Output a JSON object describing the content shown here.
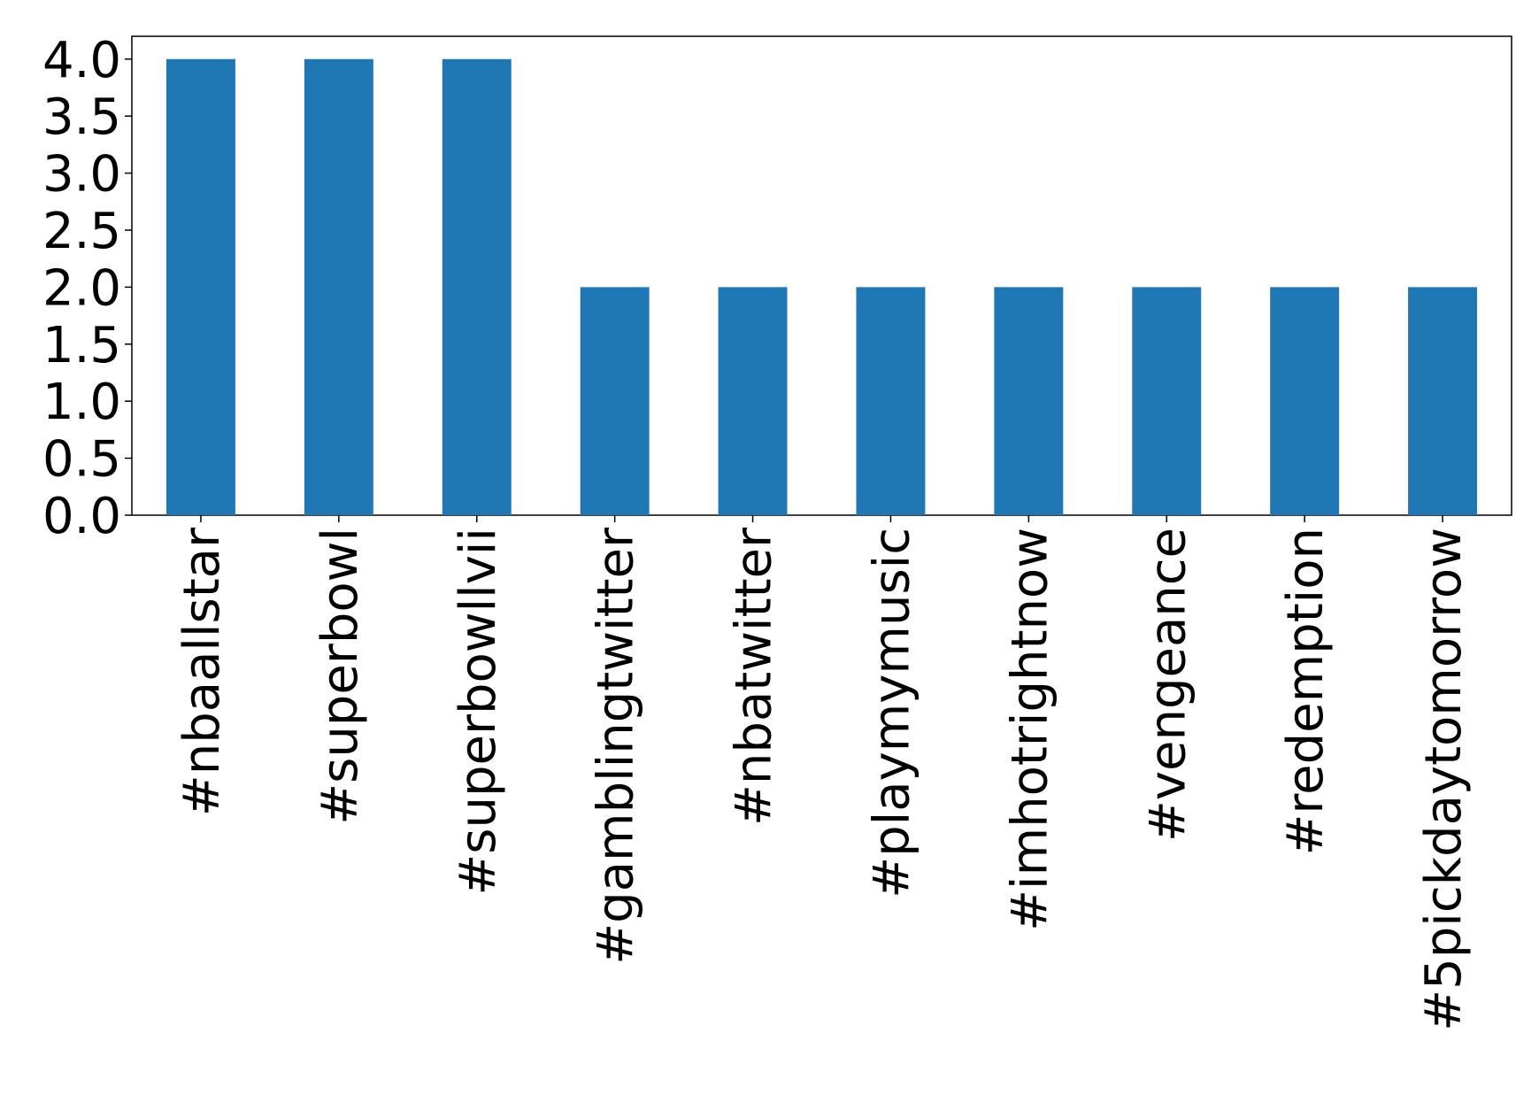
{
  "chart_data": {
    "type": "bar",
    "categories": [
      "#nbaallstar",
      "#superbowl",
      "#superbowllvii",
      "#gamblingtwitter",
      "#nbatwitter",
      "#playmymusic",
      "#imhotrightnow",
      "#vengeance",
      "#redemption",
      "#5pickdaytomorrow"
    ],
    "values": [
      4,
      4,
      4,
      2,
      2,
      2,
      2,
      2,
      2,
      2
    ],
    "color": "#1f77b4",
    "ylim": [
      0,
      4.2
    ],
    "yticks": [
      {
        "value": 0,
        "label": "0.0"
      },
      {
        "value": 0.5,
        "label": "0.5"
      },
      {
        "value": 1,
        "label": "1.0"
      },
      {
        "value": 1.5,
        "label": "1.5"
      },
      {
        "value": 2,
        "label": "2.0"
      },
      {
        "value": 2.5,
        "label": "2.5"
      },
      {
        "value": 3,
        "label": "3.0"
      },
      {
        "value": 3.5,
        "label": "3.5"
      },
      {
        "value": 4,
        "label": "4.0"
      }
    ],
    "grid": false
  }
}
